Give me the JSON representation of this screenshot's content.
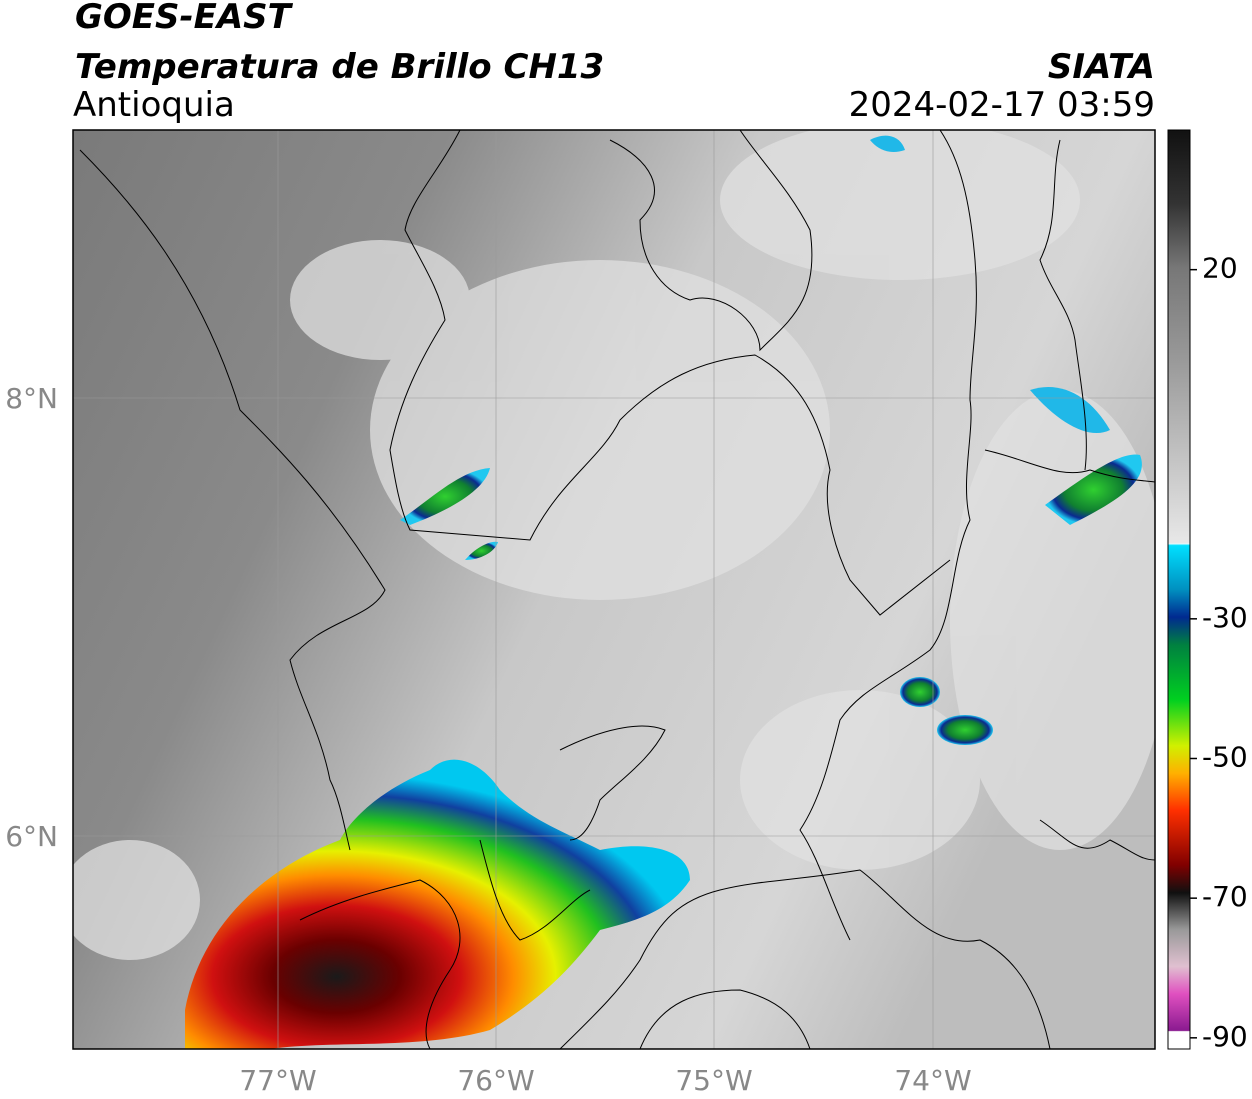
{
  "header": {
    "title": "GOES-EAST",
    "subtitle": "Temperatura de Brillo CH13",
    "region": "Antioquia",
    "source": "SIATA",
    "datetime": "2024-02-17 03:59"
  },
  "map": {
    "lon_labels": [
      "77°W",
      "76°W",
      "75°W",
      "74°W"
    ],
    "lat_labels": [
      "8°N",
      "6°N"
    ]
  },
  "colorbar": {
    "range": [
      40,
      -91.6
    ],
    "ticks": [
      20,
      -30,
      -50,
      -70,
      -90
    ]
  }
}
